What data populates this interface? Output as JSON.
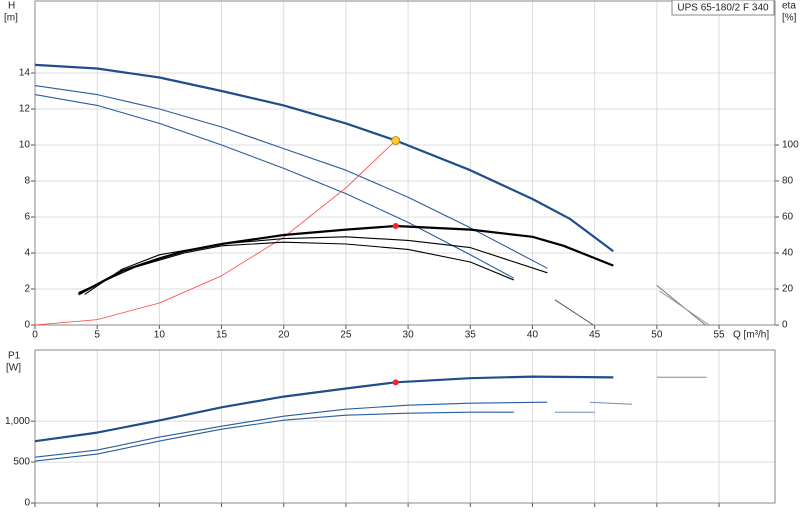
{
  "chart_data": [
    {
      "type": "line",
      "annotation": "UPS 65-180/2 F 340",
      "ylabel": "H",
      "ylabel_unit": "[m]",
      "y2label": "eta",
      "y2label_unit": "[%]",
      "xlabel": "Q [m³/h]",
      "xlim": [
        0,
        59.5
      ],
      "xticks": [
        0,
        5,
        10,
        15,
        20,
        25,
        30,
        35,
        40,
        45,
        50,
        55
      ],
      "ylim": [
        0,
        18
      ],
      "yticks": [
        0,
        2,
        4,
        6,
        8,
        10,
        12,
        14
      ],
      "y2lim": [
        0,
        180
      ],
      "y2ticks": [
        0,
        20,
        40,
        60,
        80,
        100
      ],
      "grid": true,
      "show_xtick_labels": true,
      "series": [
        {
          "color": "#1f4e8c",
          "width": 2.2,
          "x": [
            0,
            5,
            10,
            15,
            20,
            25,
            29,
            35,
            40,
            43,
            46.5
          ],
          "values": [
            14.45,
            14.25,
            13.75,
            13.0,
            12.2,
            11.2,
            10.25,
            8.6,
            7.0,
            5.9,
            4.1
          ]
        },
        {
          "color": "#2a5d9c",
          "width": 1.1,
          "x": [
            0,
            5,
            10,
            15,
            20,
            25,
            30,
            35,
            41.2
          ],
          "values": [
            13.3,
            12.8,
            12.0,
            11.0,
            9.8,
            8.6,
            7.1,
            5.4,
            3.15
          ]
        },
        {
          "color": "#2a5d9c",
          "width": 1.1,
          "x": [
            0,
            5,
            10,
            15,
            20,
            25,
            30,
            35,
            38.5
          ],
          "values": [
            12.8,
            12.2,
            11.2,
            10.0,
            8.7,
            7.3,
            5.7,
            3.9,
            2.6
          ]
        },
        {
          "color": "#ff4040",
          "width": 0.8,
          "x": [
            0,
            5,
            10,
            15,
            20,
            25,
            29
          ],
          "values": [
            0,
            0.3,
            1.22,
            2.74,
            4.87,
            7.62,
            10.25
          ]
        },
        {
          "color": "#000000",
          "width": 2.2,
          "axis": "y2",
          "x": [
            3.5,
            7,
            10,
            12,
            15,
            20,
            25,
            29,
            35,
            40,
            42.5,
            46.5
          ],
          "values": [
            17,
            30,
            37,
            41,
            45,
            50,
            53,
            55,
            53,
            49,
            44,
            33
          ]
        },
        {
          "color": "#000000",
          "width": 1.1,
          "axis": "y2",
          "x": [
            4,
            7,
            10,
            15,
            20,
            25,
            30,
            35,
            41.2
          ],
          "values": [
            17,
            31,
            39,
            45,
            48,
            49,
            47,
            43,
            29
          ]
        },
        {
          "color": "#000000",
          "width": 1.1,
          "axis": "y2",
          "x": [
            3.5,
            8,
            12,
            15,
            20,
            25,
            30,
            35,
            38.5
          ],
          "values": [
            18,
            32,
            40,
            44,
            46,
            45,
            42,
            35,
            25
          ]
        },
        {
          "color": "#555555",
          "width": 1,
          "x": [
            41.8,
            44.9
          ],
          "values": [
            1.4,
            0
          ]
        },
        {
          "color": "#777777",
          "width": 1,
          "x": [
            50,
            53.9
          ],
          "values": [
            2.2,
            0
          ]
        },
        {
          "color": "#999999",
          "width": 1,
          "x": [
            50.2,
            54.2
          ],
          "values": [
            1.9,
            0
          ]
        }
      ],
      "markers": [
        {
          "x": 29,
          "y": 10.25,
          "color": "#ffcc33"
        },
        {
          "x": 29,
          "y": 55,
          "axis": "y2",
          "color": "#ff2020"
        }
      ]
    },
    {
      "type": "line",
      "ylabel": "P1",
      "ylabel_unit": "[W]",
      "xlim": [
        0,
        59.5
      ],
      "xticks": [
        0,
        5,
        10,
        15,
        20,
        25,
        30,
        35,
        40,
        45,
        50,
        55
      ],
      "ylim": [
        0,
        1870
      ],
      "yticks": [
        0,
        500,
        {
          "value": 1000,
          "label": "1,000"
        }
      ],
      "grid": true,
      "show_xtick_labels": false,
      "series": [
        {
          "color": "#1f4e8c",
          "width": 2.2,
          "x": [
            0,
            5,
            10,
            15,
            20,
            25,
            29,
            35,
            40,
            46.5
          ],
          "values": [
            755,
            860,
            1010,
            1170,
            1300,
            1400,
            1475,
            1525,
            1545,
            1535
          ]
        },
        {
          "color": "#2a5d9c",
          "width": 1.1,
          "x": [
            0,
            5,
            10,
            15,
            20,
            25,
            30,
            35,
            41.2
          ],
          "values": [
            560,
            646,
            805,
            939,
            1061,
            1146,
            1195,
            1220,
            1232
          ]
        },
        {
          "color": "#2a5d9c",
          "width": 1.1,
          "x": [
            0,
            5,
            10,
            15,
            20,
            25,
            30,
            35,
            38.5
          ],
          "values": [
            512,
            598,
            756,
            902,
            1012,
            1073,
            1098,
            1110,
            1110
          ]
        },
        {
          "color": "#6f8fb5",
          "width": 1,
          "x": [
            41.8,
            45
          ],
          "values": [
            1110,
            1110
          ]
        },
        {
          "color": "#6f8fb5",
          "width": 1,
          "x": [
            44.6,
            48
          ],
          "values": [
            1232,
            1207
          ]
        },
        {
          "color": "#6f8fb5",
          "width": 1,
          "x": [
            50,
            54
          ],
          "values": [
            1537,
            1537
          ]
        }
      ],
      "markers": [
        {
          "x": 29,
          "y": 1475,
          "color": "#ff2020"
        }
      ]
    }
  ]
}
